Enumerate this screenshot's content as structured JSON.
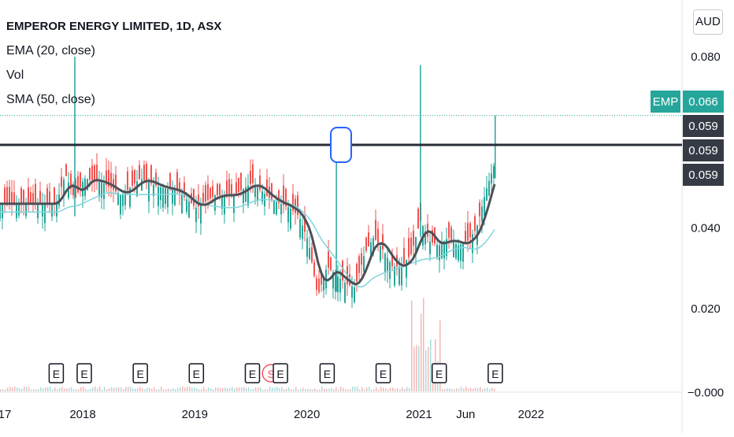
{
  "legend": {
    "title": "EMPEROR ENERGY LIMITED, 1D, ASX",
    "ema": "EMA (20, close)",
    "vol": "Vol",
    "sma": "SMA (50, close)"
  },
  "currency": "AUD",
  "price_tags": [
    {
      "label": "EMP",
      "value": "0.066",
      "color": "#26a69a"
    },
    {
      "label": "",
      "value": "0.059",
      "color": "#363a45"
    },
    {
      "label": "",
      "value": "0.059",
      "color": "#363a45"
    },
    {
      "label": "",
      "value": "0.059",
      "color": "#363a45"
    }
  ],
  "colors": {
    "up": "#26a69a",
    "down": "#ef5350",
    "ema": "#4d5058",
    "sma": "#7fd6dc",
    "hline": "#2a2e39",
    "earnings_badge": "#131722",
    "split_badge": "#f7525f"
  },
  "chart_data": {
    "type": "candlestick",
    "title": "EMPEROR ENERGY LIMITED, 1D, ASX",
    "y_axis": {
      "ticks": [
        "0.080",
        "0.020",
        "−0.000"
      ],
      "currency": "AUD",
      "position": "right"
    },
    "x_axis": {
      "ticks": [
        "17",
        "2018",
        "2019",
        "2020",
        "2021",
        "Jun",
        "2022"
      ]
    },
    "horizontal_line": 0.059,
    "last_price": 0.066,
    "price_series": [
      {
        "date": "2017-11",
        "close": 0.045
      },
      {
        "date": "2017-12",
        "close": 0.052
      },
      {
        "date": "2018-01",
        "close": 0.046
      },
      {
        "date": "2018-02",
        "close": 0.051
      },
      {
        "date": "2018-04",
        "close": 0.05
      },
      {
        "date": "2018-06",
        "close": 0.047
      },
      {
        "date": "2018-08",
        "close": 0.051
      },
      {
        "date": "2018-10",
        "close": 0.049
      },
      {
        "date": "2018-12",
        "close": 0.048
      },
      {
        "date": "2019-02",
        "close": 0.044
      },
      {
        "date": "2019-04",
        "close": 0.047
      },
      {
        "date": "2019-06",
        "close": 0.047
      },
      {
        "date": "2019-08",
        "close": 0.05
      },
      {
        "date": "2019-10",
        "close": 0.046
      },
      {
        "date": "2019-12",
        "close": 0.044
      },
      {
        "date": "2020-01",
        "close": 0.042
      },
      {
        "date": "2020-02",
        "close": 0.036
      },
      {
        "date": "2020-03",
        "close": 0.023
      },
      {
        "date": "2020-04",
        "close": 0.03
      },
      {
        "date": "2020-06",
        "close": 0.026
      },
      {
        "date": "2020-07",
        "close": 0.025
      },
      {
        "date": "2020-08",
        "close": 0.033
      },
      {
        "date": "2020-09",
        "close": 0.037
      },
      {
        "date": "2020-10",
        "close": 0.034
      },
      {
        "date": "2020-11",
        "close": 0.03
      },
      {
        "date": "2020-12",
        "close": 0.03
      },
      {
        "date": "2021-01",
        "close": 0.033
      },
      {
        "date": "2021-02",
        "close": 0.041
      },
      {
        "date": "2021-03",
        "close": 0.036
      },
      {
        "date": "2021-04",
        "close": 0.035
      },
      {
        "date": "2021-05",
        "close": 0.037
      },
      {
        "date": "2021-06",
        "close": 0.035
      },
      {
        "date": "2021-07",
        "close": 0.036
      },
      {
        "date": "2021-08",
        "close": 0.039
      },
      {
        "date": "2021-09",
        "close": 0.048
      },
      {
        "date": "2021-10",
        "close": 0.055
      }
    ],
    "spikes": [
      {
        "date": "2018-01",
        "high": 0.08
      },
      {
        "date": "2020-05",
        "high": 0.059
      },
      {
        "date": "2021-02",
        "high": 0.078
      },
      {
        "date": "2021-10",
        "high": 0.066
      }
    ],
    "events": [
      {
        "type": "E",
        "date": "2017-10"
      },
      {
        "type": "E",
        "date": "2018-01"
      },
      {
        "type": "E",
        "date": "2018-07"
      },
      {
        "type": "E",
        "date": "2019-01"
      },
      {
        "type": "E",
        "date": "2019-07"
      },
      {
        "type": "S",
        "date": "2019-09"
      },
      {
        "type": "E",
        "date": "2019-10"
      },
      {
        "type": "E",
        "date": "2020-03"
      },
      {
        "type": "E",
        "date": "2020-09"
      },
      {
        "type": "E",
        "date": "2021-03"
      },
      {
        "type": "E",
        "date": "2021-09"
      }
    ]
  }
}
